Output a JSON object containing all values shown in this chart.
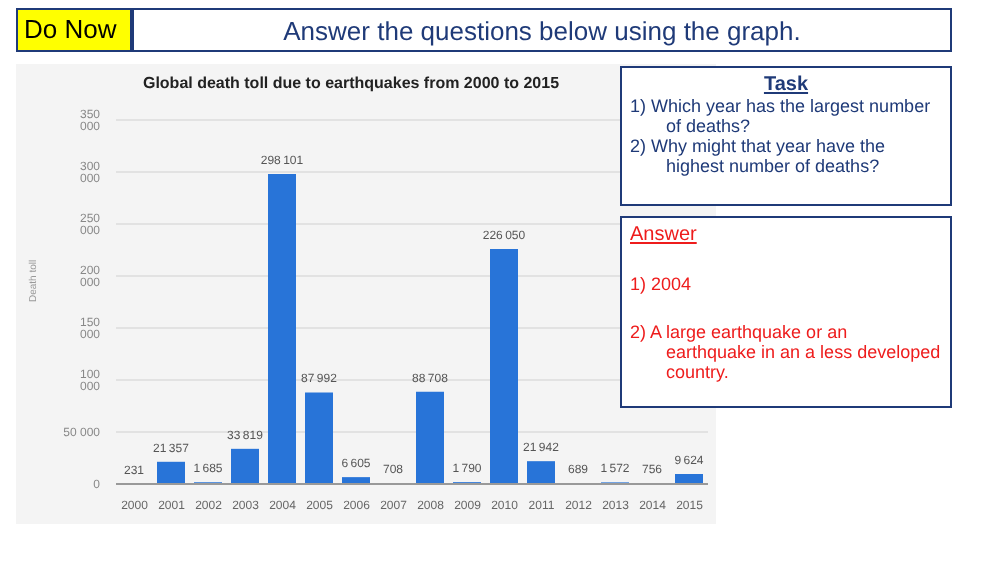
{
  "chart_data": {
    "type": "bar",
    "title": "Global death toll due to earthquakes from 2000 to 2015",
    "ylabel": "Death toll",
    "categories": [
      "2000",
      "2001",
      "2002",
      "2003",
      "2004",
      "2005",
      "2006",
      "2007",
      "2008",
      "2009",
      "2010",
      "2011",
      "2012",
      "2013",
      "2014",
      "2015"
    ],
    "values": [
      231,
      21357,
      1685,
      33819,
      298101,
      87992,
      6605,
      708,
      88708,
      1790,
      226050,
      21942,
      689,
      1572,
      756,
      9624
    ],
    "color": "#2874d8",
    "ylim": [
      0,
      350000
    ],
    "yticks": [
      {
        "value": 0,
        "label": "0"
      },
      {
        "value": 50000,
        "label": "50 000"
      },
      {
        "value": 100000,
        "label": "100 000"
      },
      {
        "value": 150000,
        "label": "150 000"
      },
      {
        "value": 200000,
        "label": "200 000"
      },
      {
        "value": 250000,
        "label": "250 000"
      },
      {
        "value": 300000,
        "label": "300 000"
      },
      {
        "value": 350000,
        "label": "350 000"
      }
    ],
    "grid": "y",
    "data_labels": true,
    "annotations": [
      "Do Now",
      "Answer the questions below using the graph.",
      "Task",
      "1) Which year has the largest number of deaths?",
      "2) Why might that year have the highest number of deaths?",
      "Answer",
      "1) 2004",
      "2) A large earthquake or an earthquake in an a less developed country."
    ]
  }
}
